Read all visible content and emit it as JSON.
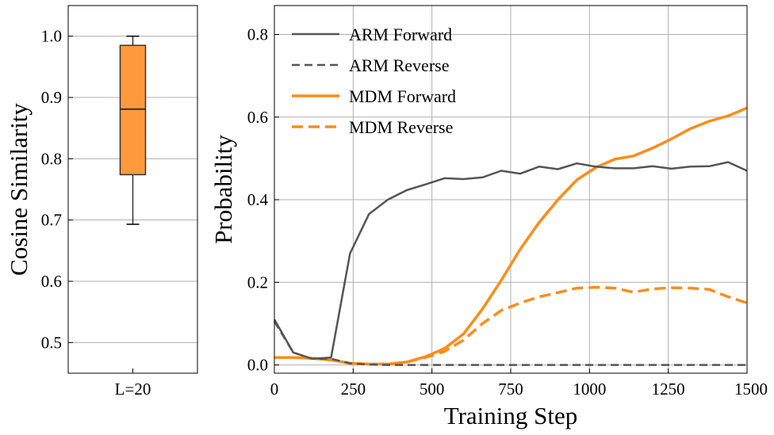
{
  "chart_data": [
    {
      "type": "box",
      "categories": [
        "L=20"
      ],
      "ylabel": "Cosine Similarity",
      "ylim": [
        0.45,
        1.05
      ],
      "yticks": [
        0.5,
        0.6,
        0.7,
        0.8,
        0.9,
        1.0
      ],
      "ytick_labels": [
        "0.5",
        "0.6",
        "0.7",
        "0.8",
        "0.9",
        "1.0"
      ],
      "grid": true,
      "box": {
        "whisker_low": 0.693,
        "q1": 0.774,
        "median": 0.881,
        "q3": 0.985,
        "whisker_high": 1.0
      },
      "colors": {
        "box_fill": "#FF9A3C",
        "box_edge": "#333333"
      }
    },
    {
      "type": "line",
      "xlabel": "Training Step",
      "ylabel": "Probability",
      "xlim": [
        0,
        1500
      ],
      "ylim": [
        -0.02,
        0.87
      ],
      "xticks": [
        0,
        250,
        500,
        750,
        1000,
        1250,
        1500
      ],
      "xtick_labels": [
        "0",
        "250",
        "500",
        "750",
        "1000",
        "1250",
        "1500"
      ],
      "yticks": [
        0.0,
        0.2,
        0.4,
        0.6,
        0.8
      ],
      "ytick_labels": [
        "0.0",
        "0.2",
        "0.4",
        "0.6",
        "0.8"
      ],
      "grid": true,
      "legend_position": "top-left",
      "x": [
        0,
        60,
        120,
        180,
        240,
        300,
        360,
        420,
        480,
        540,
        600,
        660,
        720,
        780,
        840,
        900,
        960,
        1020,
        1080,
        1140,
        1200,
        1260,
        1320,
        1380,
        1440,
        1500
      ],
      "series": [
        {
          "name": "ARM Forward",
          "color": "#555555",
          "dash": "solid",
          "values": [
            0.11,
            0.03,
            0.015,
            0.018,
            0.27,
            0.365,
            0.4,
            0.423,
            0.437,
            0.452,
            0.45,
            0.454,
            0.47,
            0.463,
            0.48,
            0.474,
            0.488,
            0.48,
            0.476,
            0.476,
            0.481,
            0.475,
            0.48,
            0.481,
            0.491,
            0.47
          ]
        },
        {
          "name": "ARM Reverse",
          "color": "#555555",
          "dash": "dashed",
          "values": [
            0.105,
            0.03,
            0.015,
            0.015,
            0.004,
            0.001,
            0.0,
            0.0,
            0.0,
            0.0,
            0.0,
            0.0,
            0.0,
            0.0,
            0.0,
            0.0,
            0.0,
            0.0,
            0.0,
            0.0,
            0.0,
            0.0,
            0.0,
            0.0,
            0.0,
            0.0
          ]
        },
        {
          "name": "MDM Forward",
          "color": "#FF8C1A",
          "dash": "solid",
          "values": [
            0.018,
            0.018,
            0.016,
            0.012,
            0.004,
            0.002,
            0.002,
            0.007,
            0.02,
            0.04,
            0.075,
            0.135,
            0.205,
            0.28,
            0.345,
            0.4,
            0.448,
            0.478,
            0.498,
            0.506,
            0.525,
            0.547,
            0.572,
            0.59,
            0.603,
            0.622
          ]
        },
        {
          "name": "MDM Reverse",
          "color": "#FF8C1A",
          "dash": "dashed",
          "values": [
            0.018,
            0.018,
            0.016,
            0.012,
            0.004,
            0.002,
            0.002,
            0.007,
            0.018,
            0.033,
            0.06,
            0.1,
            0.132,
            0.15,
            0.165,
            0.175,
            0.186,
            0.188,
            0.186,
            0.176,
            0.184,
            0.187,
            0.186,
            0.183,
            0.165,
            0.15
          ]
        }
      ]
    }
  ]
}
